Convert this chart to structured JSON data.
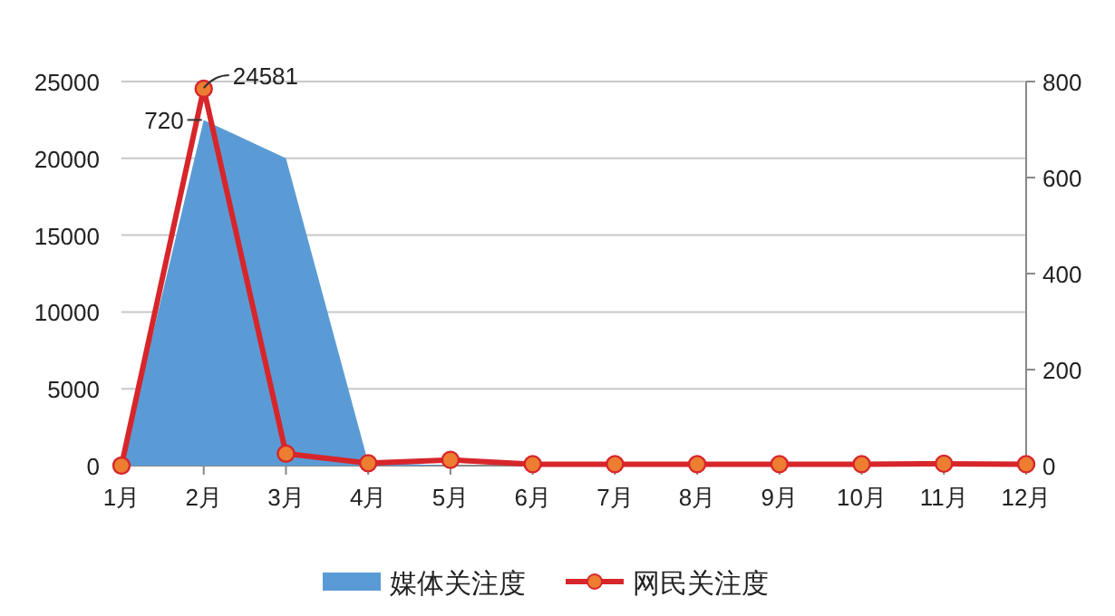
{
  "chart_data": {
    "type": "area",
    "categories": [
      "1月",
      "2月",
      "3月",
      "4月",
      "5月",
      "6月",
      "7月",
      "8月",
      "9月",
      "10月",
      "11月",
      "12月"
    ],
    "series": [
      {
        "name": "媒体关注度",
        "type": "area",
        "color": "#5b9bd5",
        "values": [
          0,
          22500,
          20000,
          200,
          0,
          0,
          0,
          0,
          0,
          0,
          300,
          0
        ]
      },
      {
        "name": "网民关注度",
        "type": "line",
        "axis": "y2",
        "color": "#d7262b",
        "marker": "circle",
        "values": [
          0,
          785,
          25,
          5,
          12,
          3,
          3,
          3,
          3,
          3,
          4,
          3
        ]
      }
    ],
    "ylim": [
      0,
      25000
    ],
    "yticks": [
      0,
      5000,
      10000,
      15000,
      20000,
      25000
    ],
    "y2lim": [
      0,
      800
    ],
    "y2ticks": [
      0,
      200,
      400,
      600,
      800
    ],
    "annotations": [
      {
        "text": "24581",
        "x": "2月",
        "y": 24581
      },
      {
        "text": "720",
        "x": "2月",
        "y": 22500
      }
    ],
    "grid": "y",
    "legend": "bottom"
  }
}
